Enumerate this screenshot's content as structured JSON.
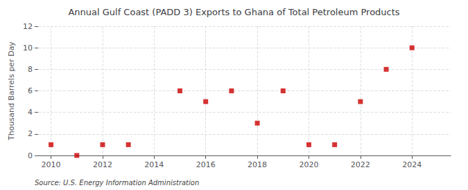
{
  "chart_data": {
    "type": "scatter",
    "title": "Annual Gulf Coast (PADD 3) Exports to Ghana of Total Petroleum Products",
    "y_label": "Thousand Barrels per Day",
    "annotations": [
      "Source: U.S. Energy Information Administration"
    ],
    "x": [
      2010,
      2011,
      2012,
      2013,
      2015,
      2016,
      2017,
      2018,
      2019,
      2020,
      2021,
      2022,
      2023,
      2024
    ],
    "values": [
      1,
      0,
      1,
      1,
      6,
      5,
      6,
      3,
      6,
      1,
      1,
      5,
      8,
      10
    ],
    "color": "#cc0000",
    "marker": "square",
    "xlim": [
      2009.5,
      2025.5
    ],
    "xticks": [
      2010,
      2012,
      2014,
      2016,
      2018,
      2020,
      2022,
      2024
    ],
    "ylim": [
      0,
      12
    ],
    "yticks": [
      0,
      2,
      4,
      6,
      8,
      10,
      12
    ],
    "grid": true
  }
}
